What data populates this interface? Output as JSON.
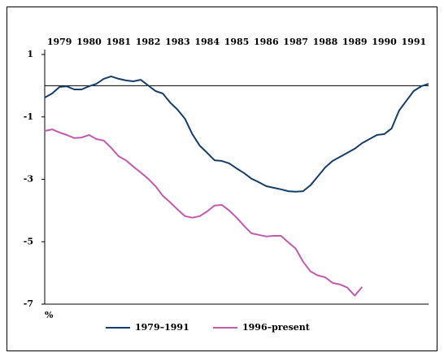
{
  "chart_data": {
    "type": "line",
    "y_label": "%",
    "x": [
      1979.0,
      1979.25,
      1979.5,
      1979.75,
      1980.0,
      1980.25,
      1980.5,
      1980.75,
      1981.0,
      1981.25,
      1981.5,
      1981.75,
      1982.0,
      1982.25,
      1982.5,
      1982.75,
      1983.0,
      1983.25,
      1983.5,
      1983.75,
      1984.0,
      1984.25,
      1984.5,
      1984.75,
      1985.0,
      1985.25,
      1985.5,
      1985.75,
      1986.0,
      1986.25,
      1986.5,
      1986.75,
      1987.0,
      1987.25,
      1987.5,
      1987.75,
      1988.0,
      1988.25,
      1988.5,
      1988.75,
      1989.0,
      1989.25,
      1989.5,
      1989.75,
      1990.0,
      1990.25,
      1990.5,
      1990.75,
      1991.0,
      1991.25,
      1991.5,
      1991.75,
      1992.0
    ],
    "series": [
      {
        "name": "1979–1991",
        "color": "#163e6b",
        "values": [
          -0.38,
          -0.25,
          -0.04,
          -0.02,
          -0.12,
          -0.12,
          -0.02,
          0.06,
          0.22,
          0.3,
          0.22,
          0.17,
          0.14,
          0.19,
          0.01,
          -0.17,
          -0.25,
          -0.54,
          -0.77,
          -1.06,
          -1.55,
          -1.92,
          -2.15,
          -2.39,
          -2.41,
          -2.49,
          -2.65,
          -2.8,
          -2.98,
          -3.09,
          -3.22,
          -3.27,
          -3.32,
          -3.38,
          -3.4,
          -3.38,
          -3.19,
          -2.91,
          -2.62,
          -2.41,
          -2.28,
          -2.15,
          -2.02,
          -1.84,
          -1.71,
          -1.58,
          -1.55,
          -1.37,
          -0.8,
          -0.48,
          -0.17,
          -0.02,
          0.06
        ]
      },
      {
        "name": "1996–present",
        "color": "#c45aad",
        "values": [
          -1.45,
          -1.4,
          -1.5,
          -1.58,
          -1.68,
          -1.66,
          -1.58,
          -1.71,
          -1.76,
          -1.99,
          -2.26,
          -2.39,
          -2.59,
          -2.78,
          -2.98,
          -3.22,
          -3.53,
          -3.74,
          -3.97,
          -4.18,
          -4.23,
          -4.18,
          -4.03,
          -3.84,
          -3.82,
          -4.0,
          -4.23,
          -4.49,
          -4.73,
          -4.78,
          -4.83,
          -4.81,
          -4.81,
          -5.02,
          -5.22,
          -5.64,
          -5.95,
          -6.08,
          -6.14,
          -6.32,
          -6.37,
          -6.47,
          -6.73,
          -6.45,
          null,
          null,
          null,
          null,
          null,
          null,
          null,
          null,
          null
        ]
      }
    ],
    "xlim": [
      1979,
      1992
    ],
    "xticks": [
      {
        "value": 1979.5,
        "label": "1979"
      },
      {
        "value": 1980.5,
        "label": "1980"
      },
      {
        "value": 1981.5,
        "label": "1981"
      },
      {
        "value": 1982.5,
        "label": "1982"
      },
      {
        "value": 1983.5,
        "label": "1983"
      },
      {
        "value": 1984.5,
        "label": "1984"
      },
      {
        "value": 1985.5,
        "label": "1985"
      },
      {
        "value": 1986.5,
        "label": "1986"
      },
      {
        "value": 1987.5,
        "label": "1987"
      },
      {
        "value": 1988.5,
        "label": "1988"
      },
      {
        "value": 1989.5,
        "label": "1989"
      },
      {
        "value": 1990.5,
        "label": "1990"
      },
      {
        "value": 1991.5,
        "label": "1991"
      }
    ],
    "ylim": [
      -7,
      1
    ],
    "yticks": [
      1,
      -1,
      -3,
      -5,
      -7
    ],
    "hline": 0,
    "legend": "bottom"
  }
}
